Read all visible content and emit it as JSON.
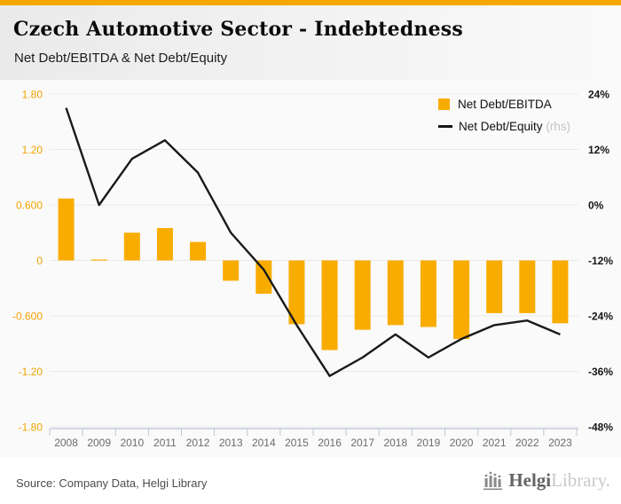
{
  "header": {
    "title": "Czech Automotive Sector - Indebtedness",
    "subtitle": "Net Debt/EBITDA & Net Debt/Equity"
  },
  "legend": {
    "ebitda_label": "Net Debt/EBITDA",
    "equity_label": "Net Debt/Equity",
    "equity_suffix": "(rhs)"
  },
  "chart_data": {
    "type": "bar",
    "title": "Czech Automotive Sector - Indebtedness",
    "subtitle": "Net Debt/EBITDA & Net Debt/Equity",
    "categories": [
      "2008",
      "2009",
      "2010",
      "2011",
      "2012",
      "2013",
      "2014",
      "2015",
      "2016",
      "2017",
      "2018",
      "2019",
      "2020",
      "2021",
      "2022",
      "2023"
    ],
    "series": [
      {
        "name": "Net Debt/EBITDA",
        "type": "bar",
        "axis": "left",
        "color": "#F9AC00",
        "values": [
          0.67,
          0.01,
          0.3,
          0.35,
          0.2,
          -0.22,
          -0.36,
          -0.69,
          -0.97,
          -0.75,
          -0.7,
          -0.72,
          -0.85,
          -0.57,
          -0.57,
          -0.68
        ]
      },
      {
        "name": "Net Debt/Equity (rhs)",
        "type": "line",
        "axis": "right",
        "color": "#1a1a1a",
        "values": [
          21,
          0,
          10,
          14,
          7,
          -6,
          -14,
          -26,
          -37,
          -33,
          -28,
          -33,
          -29,
          -26,
          -25,
          -28
        ]
      }
    ],
    "left_axis": {
      "min": -1.8,
      "max": 1.8,
      "tick_labels": [
        "1.80",
        "1.20",
        "0.600",
        "0",
        "-0.600",
        "-1.20",
        "-1.80"
      ],
      "label_color": "#F2A300"
    },
    "right_axis": {
      "min": -48,
      "max": 24,
      "tick_labels": [
        "24%",
        "12%",
        "0%",
        "-12%",
        "-24%",
        "-36%",
        "-48%"
      ],
      "label_color": "#161616"
    },
    "grid": true,
    "legend_position": "top-right"
  },
  "footer": {
    "source": "Source: Company Data, Helgi Library",
    "logo_bold": "Helgi",
    "logo_light": "Library."
  },
  "colors": {
    "accent": "#F5A800",
    "bar": "#F9AC00",
    "line": "#1a1a1a",
    "gridline": "#e9e9e9",
    "axis_line": "#bdc5da",
    "year_label": "#6b6b6b",
    "chart_bg": "#fafafa"
  }
}
